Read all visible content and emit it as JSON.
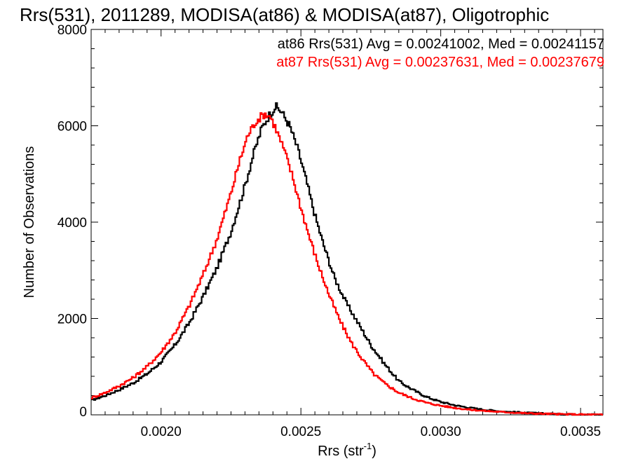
{
  "chart_data": {
    "type": "line",
    "style": "step",
    "title": "Rrs(531), 2011289, MODISA(at86) & MODISA(at87), Oligotrophic",
    "xlabel": "Rrs (str",
    "xlabel_sup": "-1",
    "xlabel_close": ")",
    "ylabel": "Number of Observations",
    "xlim": [
      0.00175,
      0.00358
    ],
    "ylim": [
      0,
      8000
    ],
    "x_ticks": [
      {
        "value": 0.002,
        "label": "0.0020"
      },
      {
        "value": 0.0025,
        "label": "0.0025"
      },
      {
        "value": 0.003,
        "label": "0.0030"
      },
      {
        "value": 0.0035,
        "label": "0.0035"
      }
    ],
    "y_ticks": [
      {
        "value": 0,
        "label": "0"
      },
      {
        "value": 2000,
        "label": "2000"
      },
      {
        "value": 4000,
        "label": "4000"
      },
      {
        "value": 6000,
        "label": "6000"
      },
      {
        "value": 8000,
        "label": "8000"
      }
    ],
    "grid": false,
    "legend": "top-right",
    "series": [
      {
        "name": "at86",
        "legend_text": "at86 Rrs(531) Avg = 0.00241002, Med = 0.00241157",
        "color": "#000000",
        "points": [
          [
            0.00175,
            300
          ],
          [
            0.0018,
            400
          ],
          [
            0.00185,
            520
          ],
          [
            0.0019,
            660
          ],
          [
            0.00195,
            850
          ],
          [
            0.002,
            1100
          ],
          [
            0.00205,
            1450
          ],
          [
            0.0021,
            1900
          ],
          [
            0.00215,
            2450
          ],
          [
            0.0022,
            3050
          ],
          [
            0.00225,
            3800
          ],
          [
            0.0023,
            4750
          ],
          [
            0.00233,
            5400
          ],
          [
            0.00236,
            5950
          ],
          [
            0.00239,
            6250
          ],
          [
            0.00241,
            6400
          ],
          [
            0.00243,
            6300
          ],
          [
            0.00246,
            6000
          ],
          [
            0.00249,
            5500
          ],
          [
            0.00252,
            4850
          ],
          [
            0.00255,
            4150
          ],
          [
            0.00258,
            3550
          ],
          [
            0.00262,
            2850
          ],
          [
            0.00266,
            2350
          ],
          [
            0.0027,
            1950
          ],
          [
            0.00275,
            1450
          ],
          [
            0.0028,
            1050
          ],
          [
            0.00285,
            700
          ],
          [
            0.0029,
            520
          ],
          [
            0.00295,
            370
          ],
          [
            0.003,
            270
          ],
          [
            0.00305,
            200
          ],
          [
            0.0031,
            150
          ],
          [
            0.00315,
            110
          ],
          [
            0.0032,
            80
          ],
          [
            0.00325,
            60
          ],
          [
            0.0033,
            45
          ],
          [
            0.00335,
            30
          ],
          [
            0.0034,
            20
          ],
          [
            0.00345,
            12
          ],
          [
            0.0035,
            8
          ],
          [
            0.00358,
            4
          ]
        ]
      },
      {
        "name": "at87",
        "legend_text": "at87 Rrs(531) Avg = 0.00237631, Med = 0.00237679",
        "color": "#ff0000",
        "points": [
          [
            0.00175,
            350
          ],
          [
            0.0018,
            460
          ],
          [
            0.00185,
            600
          ],
          [
            0.0019,
            770
          ],
          [
            0.00195,
            1000
          ],
          [
            0.002,
            1300
          ],
          [
            0.00205,
            1700
          ],
          [
            0.0021,
            2250
          ],
          [
            0.00215,
            2900
          ],
          [
            0.0022,
            3650
          ],
          [
            0.00225,
            4600
          ],
          [
            0.00228,
            5250
          ],
          [
            0.00231,
            5800
          ],
          [
            0.00234,
            6100
          ],
          [
            0.00237,
            6250
          ],
          [
            0.00239,
            6200
          ],
          [
            0.00241,
            5950
          ],
          [
            0.00244,
            5500
          ],
          [
            0.00247,
            4950
          ],
          [
            0.0025,
            4300
          ],
          [
            0.00253,
            3700
          ],
          [
            0.00256,
            3150
          ],
          [
            0.0026,
            2500
          ],
          [
            0.00264,
            1950
          ],
          [
            0.00268,
            1500
          ],
          [
            0.00272,
            1150
          ],
          [
            0.00276,
            850
          ],
          [
            0.0028,
            650
          ],
          [
            0.00285,
            460
          ],
          [
            0.0029,
            340
          ],
          [
            0.00295,
            250
          ],
          [
            0.003,
            190
          ],
          [
            0.00305,
            145
          ],
          [
            0.0031,
            110
          ],
          [
            0.00315,
            85
          ],
          [
            0.0032,
            65
          ],
          [
            0.00325,
            50
          ],
          [
            0.0033,
            35
          ],
          [
            0.00335,
            25
          ],
          [
            0.0034,
            17
          ],
          [
            0.00345,
            11
          ],
          [
            0.0035,
            7
          ],
          [
            0.00358,
            3
          ]
        ]
      }
    ]
  }
}
